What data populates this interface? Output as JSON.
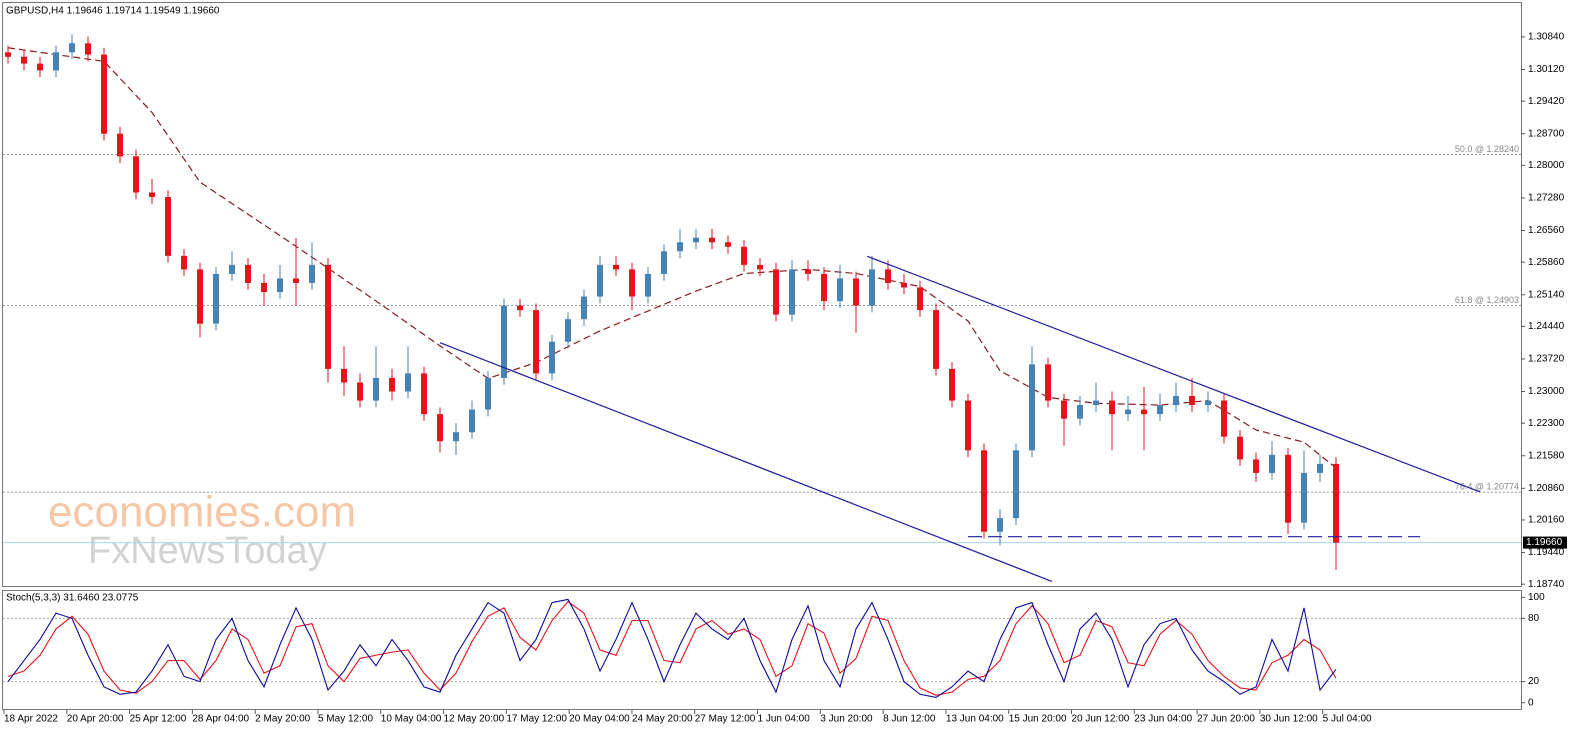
{
  "chart_data": {
    "type": "candlestick",
    "title": "GBPUSD,H4  1.19646 1.19714 1.19549 1.19660",
    "up_color": "#4682b4",
    "down_color": "#e3151b",
    "open": [
      1.305,
      1.304,
      1.3025,
      1.301,
      1.305,
      1.307,
      1.3045,
      1.287,
      1.282,
      1.274,
      1.273,
      1.26,
      1.257,
      1.245,
      1.256,
      1.258,
      1.254,
      1.252,
      1.255,
      1.254,
      1.258,
      1.235,
      1.232,
      1.228,
      1.233,
      1.23,
      1.234,
      1.225,
      1.219,
      1.221,
      1.226,
      1.233,
      1.249,
      1.248,
      1.234,
      1.241,
      1.246,
      1.251,
      1.258,
      1.257,
      1.251,
      1.256,
      1.261,
      1.263,
      1.264,
      1.263,
      1.262,
      1.258,
      1.257,
      1.247,
      1.257,
      1.256,
      1.25,
      1.255,
      1.249,
      1.257,
      1.254,
      1.253,
      1.248,
      1.235,
      1.228,
      1.217,
      1.199,
      1.202,
      1.217,
      1.236,
      1.228,
      1.224,
      1.227,
      1.228,
      1.225,
      1.226,
      1.225,
      1.227,
      1.229,
      1.227,
      1.228,
      1.22,
      1.215,
      1.212,
      1.216,
      1.201,
      1.212,
      1.214
    ],
    "high": [
      1.3065,
      1.3055,
      1.304,
      1.3065,
      1.309,
      1.3085,
      1.306,
      1.2885,
      1.2835,
      1.277,
      1.2745,
      1.2615,
      1.2585,
      1.2575,
      1.261,
      1.2595,
      1.256,
      1.258,
      1.264,
      1.263,
      1.2595,
      1.24,
      1.234,
      1.24,
      1.235,
      1.24,
      1.2355,
      1.2265,
      1.223,
      1.228,
      1.2345,
      1.2505,
      1.2505,
      1.2495,
      1.2425,
      1.2475,
      1.2525,
      1.26,
      1.26,
      1.2585,
      1.2575,
      1.2625,
      1.266,
      1.266,
      1.266,
      1.2645,
      1.2635,
      1.2595,
      1.2585,
      1.259,
      1.259,
      1.2575,
      1.258,
      1.2565,
      1.26,
      1.259,
      1.256,
      1.2545,
      1.2495,
      1.2365,
      1.2295,
      1.2185,
      1.204,
      1.2185,
      1.24,
      1.2375,
      1.2295,
      1.229,
      1.232,
      1.23,
      1.229,
      1.231,
      1.2295,
      1.232,
      1.233,
      1.23,
      1.2295,
      1.2215,
      1.2165,
      1.219,
      1.2175,
      1.217,
      1.216,
      1.2155
    ],
    "low": [
      1.3025,
      1.301,
      1.2995,
      1.2995,
      1.3035,
      1.303,
      1.2855,
      1.2805,
      1.2725,
      1.2715,
      1.2585,
      1.2555,
      1.242,
      1.2435,
      1.2545,
      1.2525,
      1.249,
      1.2505,
      1.249,
      1.2525,
      1.232,
      1.229,
      1.2265,
      1.2265,
      1.228,
      1.2285,
      1.2235,
      1.2165,
      1.216,
      1.2195,
      1.2245,
      1.2315,
      1.2465,
      1.2325,
      1.2325,
      1.2395,
      1.2445,
      1.2495,
      1.2555,
      1.248,
      1.2495,
      1.2545,
      1.2595,
      1.2615,
      1.2615,
      1.2605,
      1.2565,
      1.2555,
      1.2455,
      1.2455,
      1.2545,
      1.248,
      1.2485,
      1.243,
      1.2475,
      1.2525,
      1.2515,
      1.2465,
      1.2335,
      1.2265,
      1.2155,
      1.1975,
      1.196,
      1.2005,
      1.2155,
      1.2265,
      1.218,
      1.2225,
      1.2255,
      1.217,
      1.2235,
      1.217,
      1.2235,
      1.2255,
      1.2255,
      1.2255,
      1.2185,
      1.2135,
      1.21,
      1.2105,
      1.1985,
      1.1995,
      1.21,
      1.1905
    ],
    "close": [
      1.304,
      1.3025,
      1.301,
      1.305,
      1.307,
      1.3045,
      1.287,
      1.282,
      1.274,
      1.273,
      1.26,
      1.257,
      1.245,
      1.256,
      1.258,
      1.254,
      1.252,
      1.255,
      1.254,
      1.258,
      1.235,
      1.232,
      1.228,
      1.233,
      1.23,
      1.234,
      1.225,
      1.219,
      1.221,
      1.226,
      1.233,
      1.249,
      1.248,
      1.234,
      1.241,
      1.246,
      1.251,
      1.258,
      1.257,
      1.251,
      1.256,
      1.261,
      1.263,
      1.264,
      1.263,
      1.262,
      1.258,
      1.257,
      1.247,
      1.257,
      1.256,
      1.25,
      1.255,
      1.249,
      1.257,
      1.254,
      1.253,
      1.248,
      1.235,
      1.228,
      1.217,
      1.199,
      1.202,
      1.217,
      1.236,
      1.228,
      1.224,
      1.227,
      1.228,
      1.225,
      1.226,
      1.225,
      1.227,
      1.229,
      1.227,
      1.228,
      1.22,
      1.215,
      1.212,
      1.216,
      1.201,
      1.212,
      1.214,
      1.1966
    ],
    "ylim": [
      1.187,
      1.3159
    ],
    "yticks": [
      {
        "value": 1.3084,
        "label": "1.30840"
      },
      {
        "value": 1.3012,
        "label": "1.30120"
      },
      {
        "value": 1.2942,
        "label": "1.29420"
      },
      {
        "value": 1.287,
        "label": "1.28700"
      },
      {
        "value": 1.28,
        "label": "1.28000"
      },
      {
        "value": 1.2728,
        "label": "1.27280"
      },
      {
        "value": 1.2656,
        "label": "1.26560"
      },
      {
        "value": 1.2586,
        "label": "1.25860"
      },
      {
        "value": 1.2514,
        "label": "1.25140"
      },
      {
        "value": 1.2444,
        "label": "1.24440"
      },
      {
        "value": 1.2372,
        "label": "1.23720"
      },
      {
        "value": 1.23,
        "label": "1.23000"
      },
      {
        "value": 1.223,
        "label": "1.22300"
      },
      {
        "value": 1.2158,
        "label": "1.21580"
      },
      {
        "value": 1.2086,
        "label": "1.20860"
      },
      {
        "value": 1.2016,
        "label": "1.20160"
      },
      {
        "value": 1.1944,
        "label": "1.19440"
      },
      {
        "value": 1.1874,
        "label": "1.18740"
      }
    ],
    "current_price": {
      "value": 1.1966,
      "label": "1.19660",
      "color": "#a8d4f0"
    },
    "fib_levels": [
      {
        "value": 1.2824,
        "label": "50.0 @ 1.28240"
      },
      {
        "value": 1.24903,
        "label": "61.8 @ 1.24903"
      },
      {
        "value": 1.20774,
        "label": "76.4 @ 1.20774"
      }
    ],
    "moving_average": {
      "color": "#8b1a1a",
      "index": [
        0,
        6,
        9,
        12,
        18,
        23,
        27,
        30,
        33,
        37,
        40,
        43,
        46,
        50,
        53,
        57,
        60,
        62,
        65,
        68,
        72,
        75,
        78,
        81,
        83
      ],
      "values": [
        1.306,
        1.303,
        1.2917,
        1.2763,
        1.2621,
        1.25,
        1.2401,
        1.2329,
        1.2364,
        1.2434,
        1.2478,
        1.2522,
        1.2561,
        1.257,
        1.2561,
        1.2532,
        1.2456,
        1.2346,
        1.2287,
        1.2274,
        1.227,
        1.228,
        1.2215,
        1.2188,
        1.2131
      ]
    },
    "trendlines": [
      {
        "from": [
          27,
          1.2408
        ],
        "to": [
          65.25,
          1.188
        ],
        "color": "#1c1ca0",
        "dashed": false
      },
      {
        "from": [
          53.7,
          1.2599
        ],
        "to": [
          92,
          1.2078
        ],
        "color": "#1c1ca0",
        "dashed": false
      },
      {
        "from": [
          60,
          1.1979
        ],
        "to": [
          88.25,
          1.1979
        ],
        "color": "#1c1ca0",
        "dashed": true
      }
    ],
    "watermark": [
      "economies.com",
      "FxNewsToday"
    ],
    "x_labels": [
      "18 Apr 2022",
      "20 Apr 20:00",
      "25 Apr 12:00",
      "28 Apr 04:00",
      "2 May 20:00",
      "5 May 12:00",
      "10 May 04:00",
      "12 May 20:00",
      "17 May 12:00",
      "20 May 04:00",
      "24 May 20:00",
      "27 May 12:00",
      "1 Jun 04:00",
      "3 Jun 20:00",
      "8 Jun 12:00",
      "13 Jun 04:00",
      "15 Jun 20:00",
      "20 Jun 12:00",
      "23 Jun 04:00",
      "27 Jun 20:00",
      "30 Jun 12:00",
      "5 Jul 04:00"
    ],
    "stochastic": {
      "title": "Stoch(5,3,3) 31.6460 23.0775",
      "k_color": "#0a0a9c",
      "d_color": "#e3151b",
      "k": [
        20,
        40,
        60,
        85,
        80,
        45,
        15,
        8,
        10,
        30,
        55,
        25,
        20,
        60,
        80,
        40,
        15,
        55,
        90,
        60,
        12,
        30,
        55,
        35,
        60,
        40,
        15,
        10,
        45,
        70,
        95,
        85,
        40,
        60,
        95,
        98,
        70,
        30,
        60,
        95,
        60,
        20,
        55,
        85,
        70,
        60,
        80,
        40,
        10,
        60,
        92,
        40,
        15,
        70,
        95,
        60,
        20,
        8,
        5,
        15,
        30,
        20,
        60,
        90,
        95,
        55,
        20,
        70,
        85,
        60,
        15,
        55,
        75,
        80,
        50,
        30,
        20,
        8,
        15,
        60,
        30,
        90,
        12,
        31.646
      ],
      "d": [
        25,
        30,
        45,
        70,
        82,
        65,
        30,
        12,
        9,
        20,
        40,
        40,
        22,
        40,
        70,
        60,
        28,
        35,
        72,
        75,
        35,
        20,
        42,
        45,
        48,
        50,
        28,
        12,
        28,
        58,
        82,
        90,
        62,
        50,
        78,
        96,
        85,
        50,
        45,
        78,
        78,
        40,
        38,
        70,
        78,
        65,
        70,
        60,
        25,
        35,
        75,
        66,
        28,
        42,
        82,
        78,
        40,
        14,
        7,
        10,
        22,
        25,
        40,
        75,
        92,
        75,
        38,
        45,
        78,
        72,
        38,
        35,
        65,
        78,
        65,
        40,
        25,
        14,
        12,
        38,
        45,
        60,
        50,
        23.0775
      ],
      "ylim": [
        -6,
        106
      ],
      "yticks": [
        0,
        20,
        80,
        100
      ],
      "grid": [
        20,
        80
      ]
    }
  }
}
